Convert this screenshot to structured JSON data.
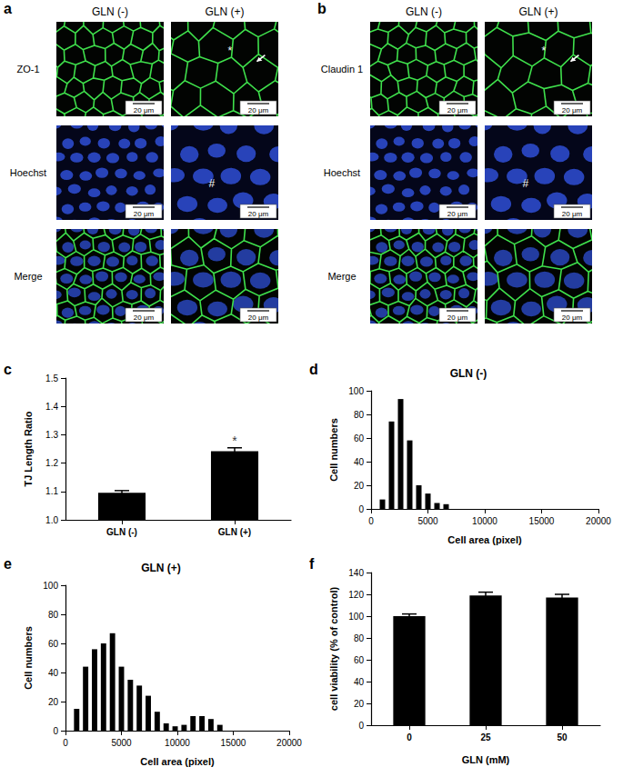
{
  "figure_panels": [
    {
      "panel": "a",
      "columns": [
        "GLN (-)",
        "GLN (+)"
      ],
      "rows": [
        "ZO-1",
        "Hoechst",
        "Merge"
      ],
      "scale_bar": "20 μm",
      "annotations": [
        {
          "row": 0,
          "column": 1,
          "text": "*"
        },
        {
          "row": 1,
          "column": 1,
          "text": "#"
        }
      ]
    },
    {
      "panel": "b",
      "columns": [
        "GLN (-)",
        "GLN (+)"
      ],
      "rows": [
        "Claudin 1",
        "Hoechst",
        "Merge"
      ],
      "scale_bar": "20 μm",
      "annotations": [
        {
          "row": 0,
          "column": 1,
          "text": "*"
        },
        {
          "row": 1,
          "column": 1,
          "text": "#"
        }
      ]
    }
  ],
  "chart_data": [
    {
      "panel": "c",
      "type": "bar",
      "categories": [
        "GLN (-)",
        "GLN (+)"
      ],
      "values": [
        1.095,
        1.242
      ],
      "errors": [
        0.008,
        0.012
      ],
      "color": "#000000",
      "y_label": "TJ Length Ratio",
      "ylim": [
        1.0,
        1.5
      ],
      "yticks": [
        {
          "value": 1.0,
          "label": "1.0"
        },
        1.1,
        1.2,
        1.3,
        1.4,
        1.5
      ],
      "annotations": [
        {
          "category": "GLN (+)",
          "text": "*"
        }
      ],
      "grid": false
    },
    {
      "panel": "d",
      "type": "histogram",
      "title": "GLN (-)",
      "bins": [
        600,
        1400,
        2200,
        3000,
        3800,
        4600,
        5400,
        6200,
        7000
      ],
      "counts": [
        8,
        74,
        93,
        58,
        20,
        13,
        5,
        4
      ],
      "color": "#000000",
      "x_label": "Cell area (pixel)",
      "y_label": "Cell numbers",
      "xlim": [
        0,
        20000
      ],
      "xticks": [
        0,
        5000,
        10000,
        15000,
        20000
      ],
      "ylim": [
        0,
        100
      ],
      "yticks": [
        0,
        20,
        40,
        60,
        80,
        100
      ],
      "grid": false
    },
    {
      "panel": "e",
      "type": "histogram",
      "title": "GLN (+)",
      "bins": [
        600,
        1400,
        2200,
        3000,
        3800,
        4600,
        5400,
        6200,
        7000,
        7800,
        8600,
        9400,
        10200,
        11000,
        11800,
        12600,
        13400,
        14200
      ],
      "counts": [
        15,
        44,
        56,
        60,
        67,
        44,
        35,
        31,
        24,
        13,
        5,
        3,
        4,
        10,
        10,
        8,
        4
      ],
      "color": "#000000",
      "x_label": "Cell area (pixel)",
      "y_label": "Cell numbers",
      "xlim": [
        0,
        20000
      ],
      "xticks": [
        0,
        5000,
        10000,
        15000,
        20000
      ],
      "ylim": [
        0,
        100
      ],
      "yticks": [
        0,
        20,
        40,
        60,
        80,
        100
      ],
      "grid": false
    },
    {
      "panel": "f",
      "type": "bar",
      "categories": [
        "0",
        "25",
        "50"
      ],
      "values": [
        100,
        119,
        117
      ],
      "errors": [
        2,
        3,
        3
      ],
      "color": "#000000",
      "x_label": "GLN (mM)",
      "y_label": "cell viability (% of control)",
      "ylim": [
        0,
        140
      ],
      "yticks": [
        0,
        20,
        40,
        60,
        80,
        100,
        120,
        140
      ],
      "grid": false
    }
  ]
}
